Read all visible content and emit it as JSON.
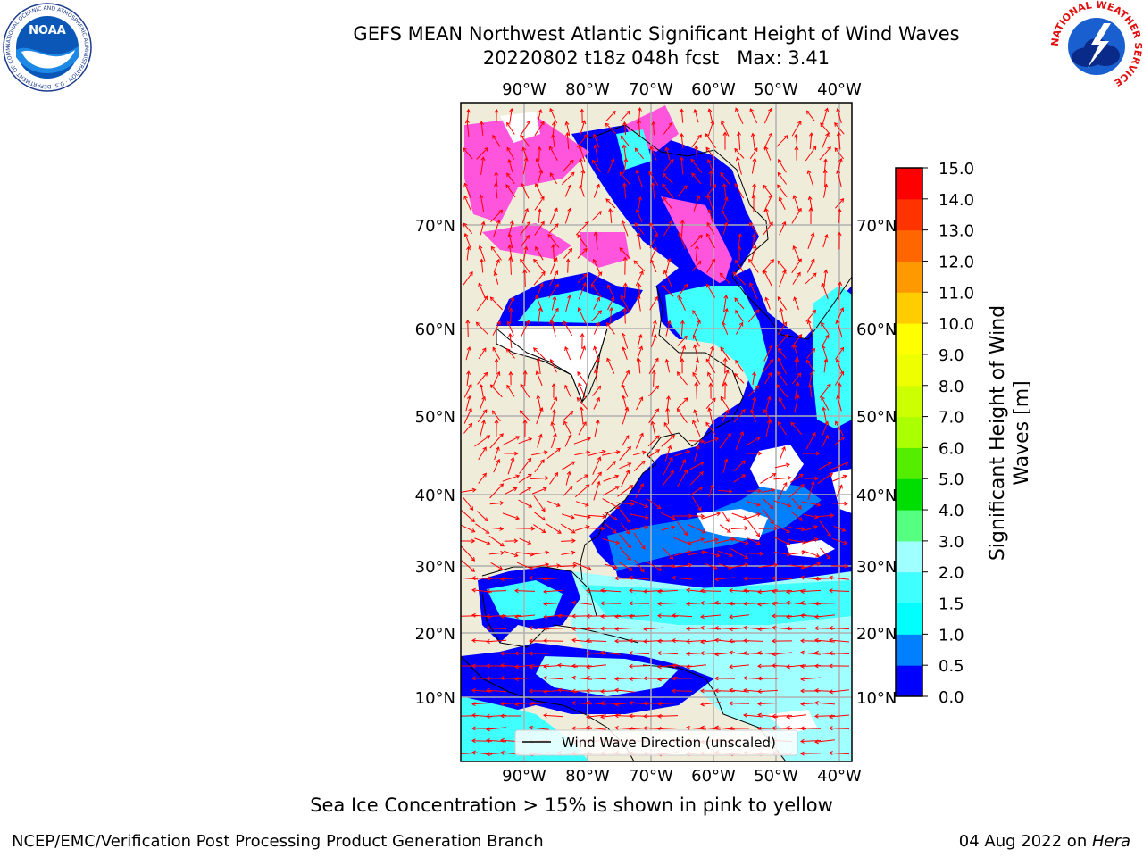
{
  "title": {
    "line1": "GEFS MEAN Northwest Atlantic Significant Height of Wind Waves",
    "line2": "20220802 t18z 048h fcst   Max: 3.41"
  },
  "logos": {
    "left": {
      "icon": "noaa-logo",
      "text": "NOAA",
      "ring_text": "NATIONAL OCEANIC AND ATMOSPHERIC ADMINISTRATION · U.S. DEPARTMENT OF COMMERCE"
    },
    "right": {
      "icon": "nws-logo",
      "ring_text": "NATIONAL WEATHER SERVICE"
    }
  },
  "map": {
    "lon_labels": [
      "90°W",
      "80°W",
      "70°W",
      "60°W",
      "50°W",
      "40°W"
    ],
    "lat_labels": [
      "70°N",
      "60°N",
      "50°N",
      "40°N",
      "30°N",
      "20°N",
      "10°N"
    ],
    "legend": "Wind Wave Direction (unscaled)",
    "colors": {
      "land": "#efedda",
      "ice": "#ff55dd",
      "ocean_low": "#0000ff",
      "grid": "#b0b0b0",
      "arrow": "#ff0000"
    }
  },
  "colorbar": {
    "label_line1": "Significant Height of Wind",
    "label_line2": "Waves [m]",
    "ticks": [
      "0.0",
      "0.5",
      "1.0",
      "1.5",
      "2.0",
      "3.0",
      "4.0",
      "5.0",
      "6.0",
      "7.0",
      "8.0",
      "9.0",
      "10.0",
      "11.0",
      "12.0",
      "13.0",
      "14.0",
      "15.0"
    ],
    "colors": [
      "#0000ff",
      "#0080ff",
      "#00ffff",
      "#40ffff",
      "#a0ffff",
      "#55ff80",
      "#00dd00",
      "#55ee00",
      "#aaff00",
      "#ccff00",
      "#eeff00",
      "#ffff00",
      "#ffcc00",
      "#ff9900",
      "#ff6600",
      "#ff3300",
      "#ff0000"
    ]
  },
  "caption": "Sea Ice Concentration > 15% is shown in pink to yellow",
  "footer": {
    "left": "NCEP/EMC/Verification Post Processing Product Generation Branch",
    "date": "04 Aug 2022 on ",
    "host": "Hera"
  }
}
